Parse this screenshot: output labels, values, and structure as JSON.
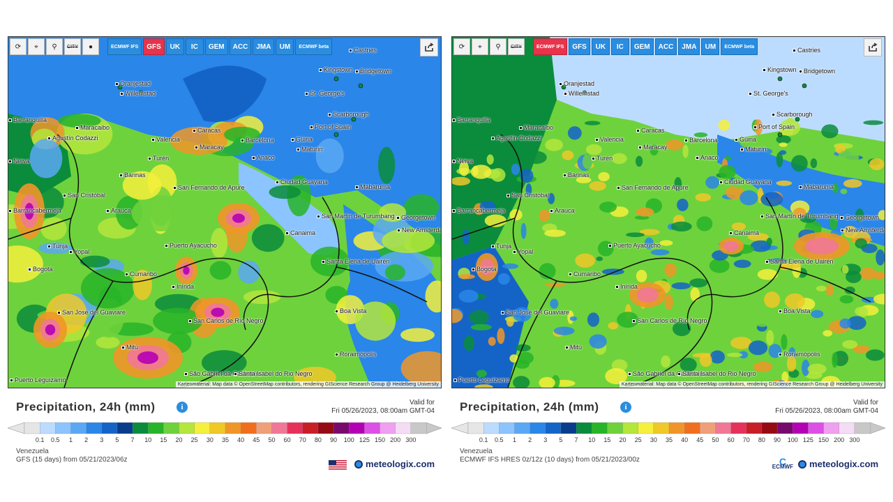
{
  "left": {
    "toolbar": {
      "icons": [
        "refresh-icon",
        "location-pin-icon",
        "zoom-icon",
        "city-toggle-icon",
        "dot-icon"
      ],
      "city_label": "CITY",
      "models": [
        {
          "label": "ECMWF IFS",
          "active": false,
          "small": true
        },
        {
          "label": "GFS",
          "active": true,
          "small": false
        },
        {
          "label": "UK",
          "active": false,
          "small": false
        },
        {
          "label": "IC",
          "active": false,
          "small": false
        },
        {
          "label": "GEM",
          "active": false,
          "small": false
        },
        {
          "label": "ACC",
          "active": false,
          "small": false
        },
        {
          "label": "JMA",
          "active": false,
          "small": false
        },
        {
          "label": "UM",
          "active": false,
          "small": false
        },
        {
          "label": "ECMWF beta",
          "active": false,
          "small": true
        }
      ]
    },
    "title": "Precipitation, 24h (mm)",
    "valid_for": "Valid for",
    "valid_time": "Fri 05/26/2023, 08:00am GMT-04",
    "region": "Venezuela",
    "model_run": "GFS (15 days) from 05/21/2023/06z",
    "brand": "meteologix.com",
    "attribution": "Kartenmaterial: Map data © OpenStreetMap contributors, rendering GIScience Research Group @ Heidelberg University"
  },
  "right": {
    "toolbar": {
      "icons": [
        "refresh-icon",
        "location-pin-icon",
        "zoom-icon",
        "city-toggle-icon"
      ],
      "city_label": "CITY",
      "models": [
        {
          "label": "ECMWF IFS",
          "active": true,
          "small": true
        },
        {
          "label": "GFS",
          "active": false,
          "small": false
        },
        {
          "label": "UK",
          "active": false,
          "small": false
        },
        {
          "label": "IC",
          "active": false,
          "small": false
        },
        {
          "label": "GEM",
          "active": false,
          "small": false
        },
        {
          "label": "ACC",
          "active": false,
          "small": false
        },
        {
          "label": "JMA",
          "active": false,
          "small": false
        },
        {
          "label": "UM",
          "active": false,
          "small": false
        },
        {
          "label": "ECMWF beta",
          "active": false,
          "small": true
        }
      ]
    },
    "title": "Precipitation, 24h (mm)",
    "valid_for": "Valid for",
    "valid_time": "Fri 05/26/2023, 08:00am GMT-04",
    "region": "Venezuela",
    "model_run": "ECMWF IFS HRES 0z/12z (10 days) from 05/21/2023/00z",
    "brand": "meteologix.com",
    "ecmwf_logo": "ECMWF",
    "attribution": "Kartenmaterial: Map data © OpenStreetMap contributors, rendering GIScience Research Group @ Heidelberg University"
  },
  "scale": {
    "ticks": [
      "0.1",
      "0.5",
      "1",
      "2",
      "3",
      "5",
      "7",
      "10",
      "15",
      "20",
      "25",
      "30",
      "35",
      "40",
      "45",
      "50",
      "60",
      "70",
      "80",
      "90",
      "100",
      "125",
      "150",
      "200",
      "300"
    ],
    "colors": [
      "#e6e6e6",
      "#bcdcff",
      "#8cc4ff",
      "#5aa8f5",
      "#2a86e8",
      "#1464c8",
      "#0a3c8c",
      "#0a8c3c",
      "#28b428",
      "#6ed23c",
      "#b4e63c",
      "#f5f03c",
      "#f0c828",
      "#f09628",
      "#f06e1e",
      "#f0a078",
      "#f07896",
      "#e6325a",
      "#c81e28",
      "#960a14",
      "#780a6e",
      "#b400b4",
      "#dc50e6",
      "#f0a0f0",
      "#f5dcf5",
      "#c8c8c8"
    ]
  },
  "cities_left": [
    {
      "name": "Castries"
    },
    {
      "name": "Oranjestad"
    },
    {
      "name": "Willemstad"
    },
    {
      "name": "Kingstown"
    },
    {
      "name": "Bridgetown"
    },
    {
      "name": "St. George's"
    },
    {
      "name": "Scarborough"
    },
    {
      "name": "Port of Spain"
    },
    {
      "name": "Maracaibo"
    },
    {
      "name": "Valencia"
    },
    {
      "name": "Caracas"
    },
    {
      "name": "Maracay"
    },
    {
      "name": "Barcelona"
    },
    {
      "name": "Güiria"
    },
    {
      "name": "Maturín"
    },
    {
      "name": "Anaco"
    },
    {
      "name": "Agustín Codazzi"
    },
    {
      "name": "Barinas"
    },
    {
      "name": "Turén"
    },
    {
      "name": "San Cristóbal"
    },
    {
      "name": "San Fernando de Apure"
    },
    {
      "name": "Ciudad Guayana"
    },
    {
      "name": "Mabaruma"
    },
    {
      "name": "Barrancabermeja"
    },
    {
      "name": "Arauca"
    },
    {
      "name": "San Martín de Turumbang"
    },
    {
      "name": "Georgetown"
    },
    {
      "name": "New Amsterdam"
    },
    {
      "name": "Tunja"
    },
    {
      "name": "Yopal"
    },
    {
      "name": "Puerto Ayacucho"
    },
    {
      "name": "Canaima"
    },
    {
      "name": "Bogota"
    },
    {
      "name": "Cumaribo"
    },
    {
      "name": "Santa Elena de Uairén"
    },
    {
      "name": "Inírida"
    },
    {
      "name": "San José del Guaviare"
    },
    {
      "name": "Boa Vista"
    },
    {
      "name": "San Carlos de Río Negro"
    },
    {
      "name": "Mitú"
    },
    {
      "name": "Roraimópolis"
    },
    {
      "name": "São Gabriel da Cachoeira"
    },
    {
      "name": "Santa Isabel do Rio Negro"
    },
    {
      "name": "Puerto Leguízamo"
    },
    {
      "name": "Barranquilla"
    },
    {
      "name": "Neiva"
    }
  ],
  "colors": {
    "accent_blue": "#2a8de0",
    "active_red": "#e8334a",
    "brand_navy": "#1a2f6e"
  }
}
